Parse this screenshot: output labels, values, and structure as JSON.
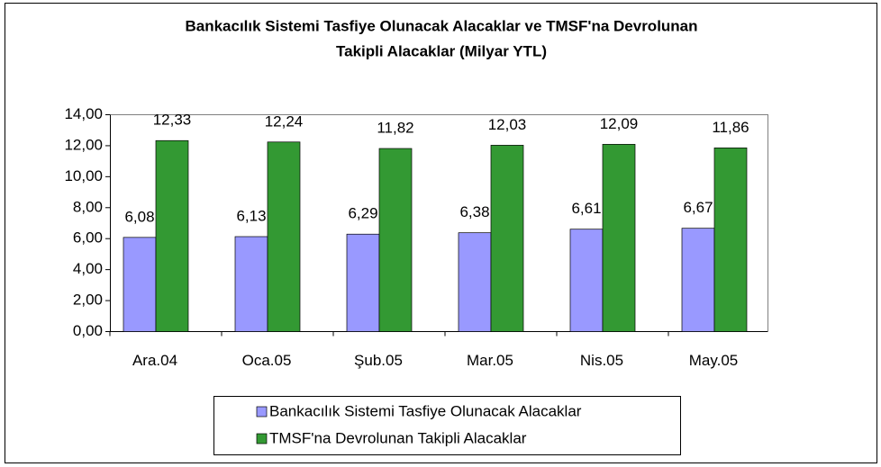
{
  "chart_data": {
    "type": "bar",
    "title": [
      "Bankacılık Sistemi Tasfiye Olunacak Alacaklar ve TMSF'na Devrolunan",
      "Takipli Alacaklar (Milyar YTL)"
    ],
    "categories": [
      "Ara.04",
      "Oca.05",
      "Şub.05",
      "Mar.05",
      "Nis.05",
      "May.05"
    ],
    "series": [
      {
        "name": "Bankacılık Sistemi Tasfiye Olunacak Alacaklar",
        "color": "#9999ff",
        "values": [
          6.08,
          6.13,
          6.29,
          6.38,
          6.61,
          6.67
        ],
        "value_labels": [
          "6,08",
          "6,13",
          "6,29",
          "6,38",
          "6,61",
          "6,67"
        ]
      },
      {
        "name": "TMSF'na Devrolunan Takipli Alacaklar",
        "color": "#339933",
        "values": [
          12.33,
          12.24,
          11.82,
          12.03,
          12.09,
          11.86
        ],
        "value_labels": [
          "12,33",
          "12,24",
          "11,82",
          "12,03",
          "12,09",
          "11,86"
        ]
      }
    ],
    "ylim": [
      0,
      14
    ],
    "yticks": [
      {
        "value": 0,
        "label": "0,00"
      },
      {
        "value": 2,
        "label": "2,00"
      },
      {
        "value": 4,
        "label": "4,00"
      },
      {
        "value": 6,
        "label": "6,00"
      },
      {
        "value": 8,
        "label": "8,00"
      },
      {
        "value": 10,
        "label": "10,00"
      },
      {
        "value": 12,
        "label": "12,00"
      },
      {
        "value": 14,
        "label": "14,00"
      }
    ],
    "grid": false,
    "legend": "bottom"
  }
}
